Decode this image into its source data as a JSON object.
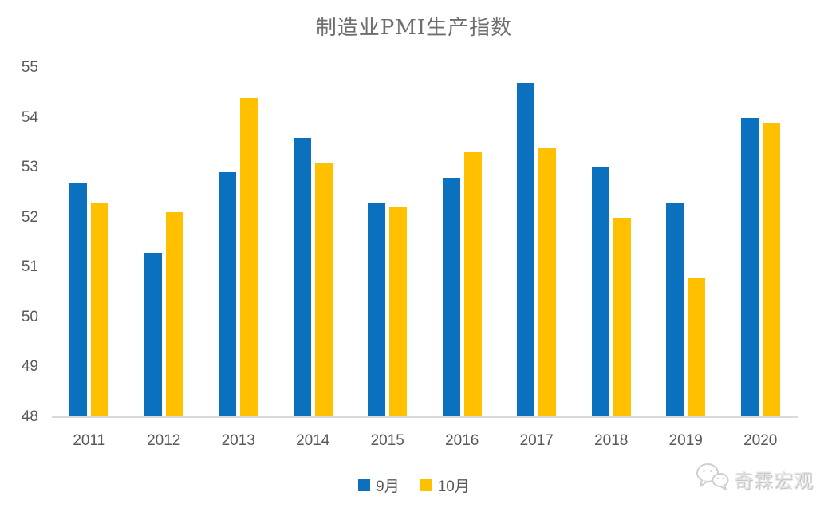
{
  "title": "制造业PMI生产指数",
  "watermark": "奇霖宏观",
  "colors": {
    "september": "#0b70be",
    "october": "#ffc000",
    "axis_line": "#d9d9d9",
    "tick_text": "#595959",
    "title_text": "#6e6e6e",
    "watermark_text": "#e3e3e3"
  },
  "chart_data": {
    "type": "bar",
    "title": "制造业PMI生产指数",
    "categories": [
      "2011",
      "2012",
      "2013",
      "2014",
      "2015",
      "2016",
      "2017",
      "2018",
      "2019",
      "2020"
    ],
    "series": [
      {
        "name": "9月",
        "key": "september",
        "values": [
          52.7,
          51.3,
          52.9,
          53.6,
          52.3,
          52.8,
          54.7,
          53.0,
          52.3,
          54.0
        ]
      },
      {
        "name": "10月",
        "key": "october",
        "values": [
          52.3,
          52.1,
          54.4,
          53.1,
          52.2,
          53.3,
          53.4,
          52.0,
          50.8,
          53.9
        ]
      }
    ],
    "xlabel": "",
    "ylabel": "",
    "ylim": [
      48,
      55
    ],
    "yticks": [
      48,
      49,
      50,
      51,
      52,
      53,
      54,
      55
    ],
    "grid": false,
    "legend_position": "bottom"
  }
}
